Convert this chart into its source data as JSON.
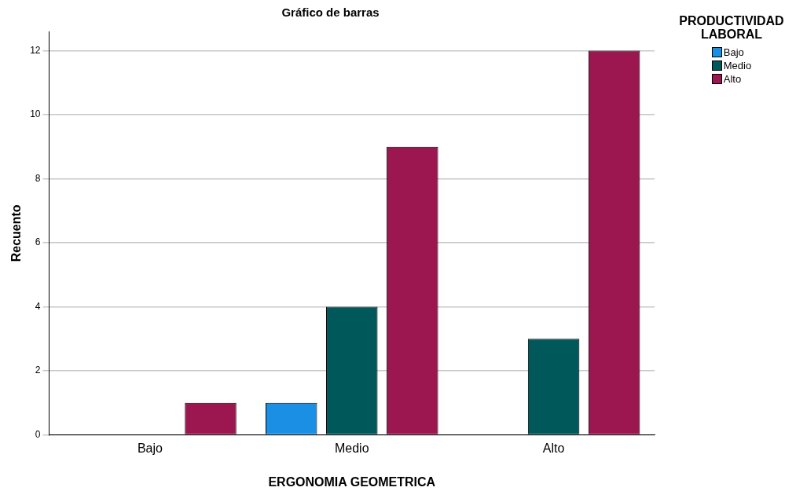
{
  "chart_data": {
    "type": "bar",
    "title": "Gráfico de barras",
    "xlabel": "ERGONOMIA GEOMETRICA",
    "ylabel": "Recuento",
    "legend_title": "PRODUCTIVIDAD LABORAL",
    "categories": [
      "Bajo",
      "Medio",
      "Alto"
    ],
    "series": [
      {
        "name": "Bajo",
        "color": "#1a8fe3",
        "values": [
          0,
          1,
          0
        ]
      },
      {
        "name": "Medio",
        "color": "#00585a",
        "values": [
          0,
          4,
          3
        ]
      },
      {
        "name": "Alto",
        "color": "#9c1650",
        "values": [
          1,
          9,
          12
        ]
      }
    ],
    "ylim": [
      0,
      12.6
    ],
    "yticks": [
      0,
      2,
      4,
      6,
      8,
      10,
      12
    ],
    "grid": "y",
    "legend": "top right"
  }
}
